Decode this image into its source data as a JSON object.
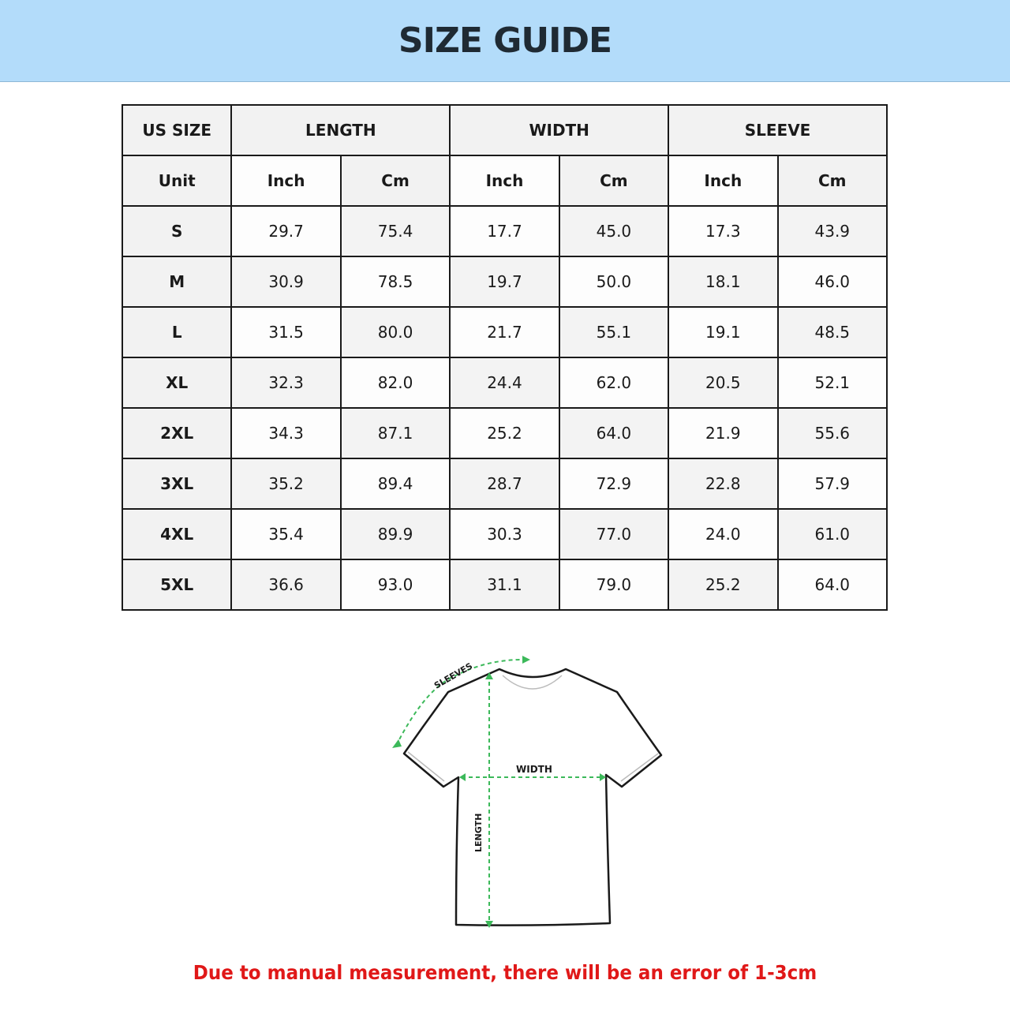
{
  "title": "SIZE GUIDE",
  "table": {
    "group_headers": [
      "US SIZE",
      "LENGTH",
      "WIDTH",
      "SLEEVE"
    ],
    "unit_row": [
      "Unit",
      "Inch",
      "Cm",
      "Inch",
      "Cm",
      "Inch",
      "Cm"
    ],
    "rows": [
      [
        "S",
        "29.7",
        "75.4",
        "17.7",
        "45.0",
        "17.3",
        "43.9"
      ],
      [
        "M",
        "30.9",
        "78.5",
        "19.7",
        "50.0",
        "18.1",
        "46.0"
      ],
      [
        "L",
        "31.5",
        "80.0",
        "21.7",
        "55.1",
        "19.1",
        "48.5"
      ],
      [
        "XL",
        "32.3",
        "82.0",
        "24.4",
        "62.0",
        "20.5",
        "52.1"
      ],
      [
        "2XL",
        "34.3",
        "87.1",
        "25.2",
        "64.0",
        "21.9",
        "55.6"
      ],
      [
        "3XL",
        "35.2",
        "89.4",
        "28.7",
        "72.9",
        "22.8",
        "57.9"
      ],
      [
        "4XL",
        "35.4",
        "89.9",
        "30.3",
        "77.0",
        "24.0",
        "61.0"
      ],
      [
        "5XL",
        "36.6",
        "93.0",
        "31.1",
        "79.0",
        "25.2",
        "64.0"
      ]
    ]
  },
  "diagram": {
    "sleeves_label": "SLEEVES",
    "width_label": "WIDTH",
    "length_label": "LENGTH",
    "arrow_color": "#3cb95a"
  },
  "note": "Due to manual measurement, there will be an error of 1-3cm",
  "colors": {
    "banner": "#b3dcfa",
    "note": "#e01818"
  }
}
